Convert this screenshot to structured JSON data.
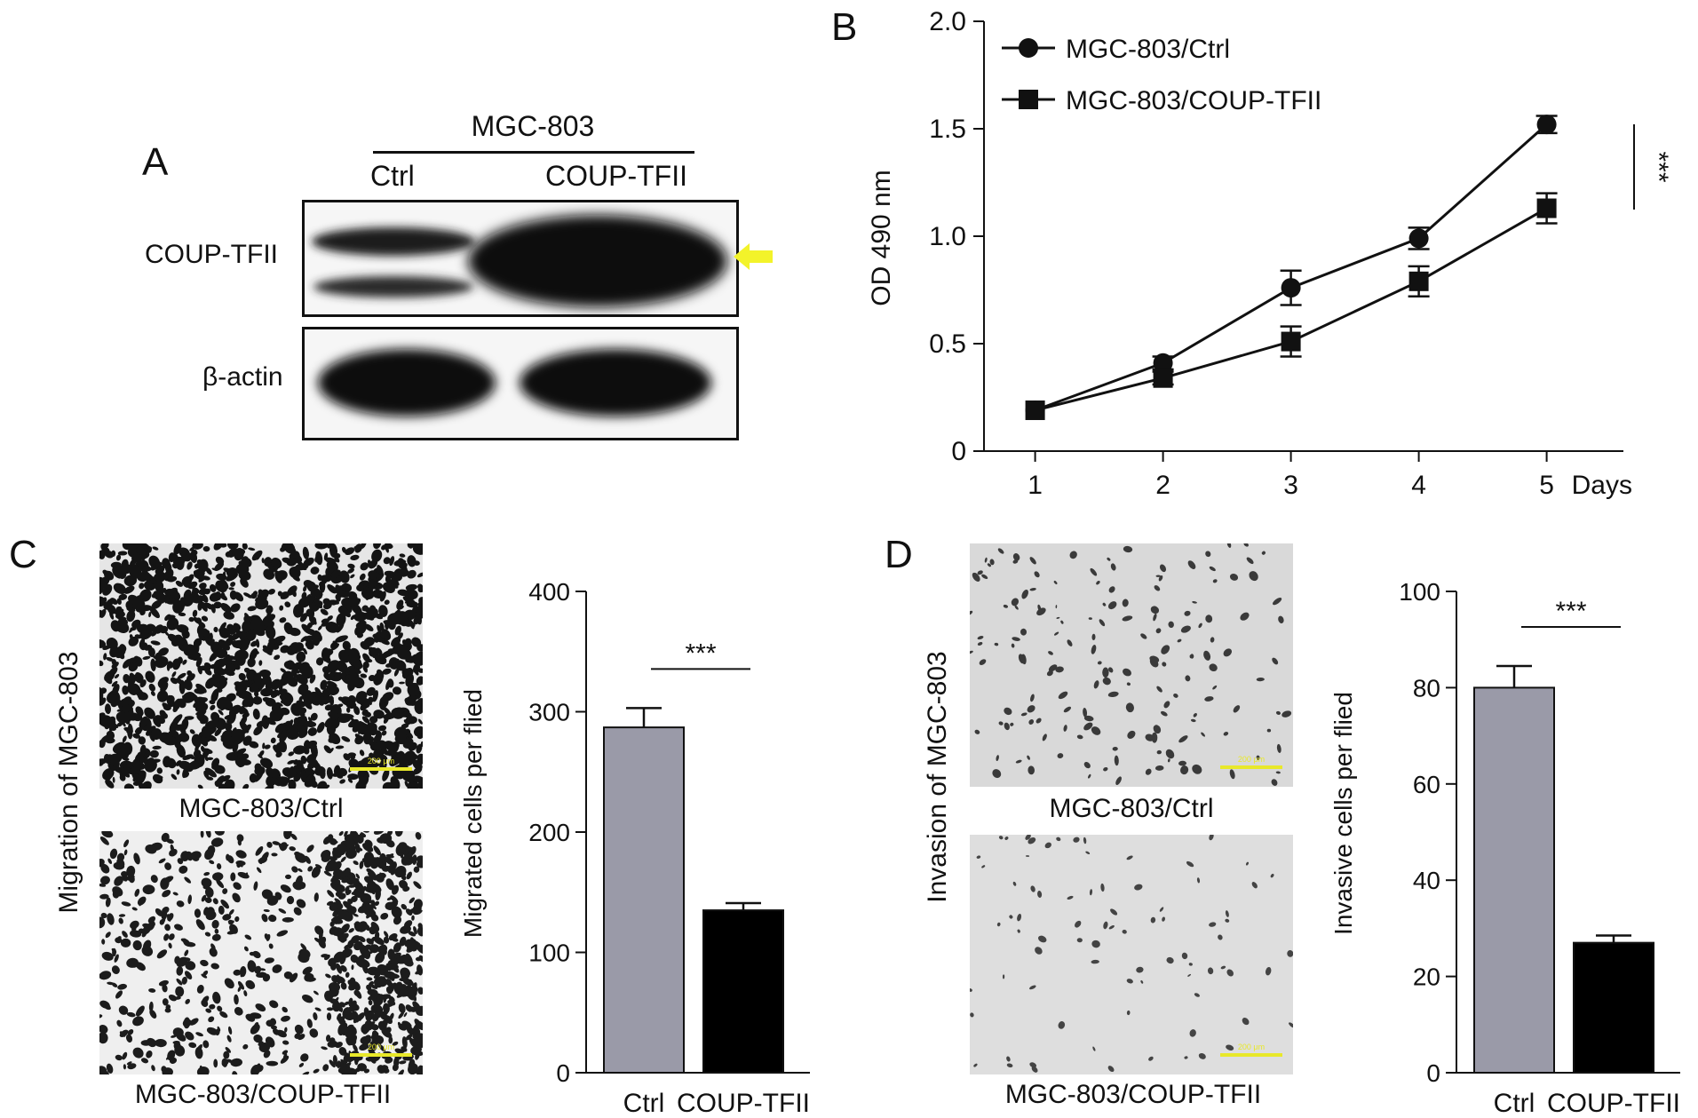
{
  "figure": {
    "panel_a": {
      "label": "A",
      "cell_line": "MGC-803",
      "lanes": [
        "Ctrl",
        "COUP-TFII"
      ],
      "rows": [
        "COUP-TFII",
        "β-actin"
      ],
      "arrow_color": "#f3f32a"
    },
    "panel_b": {
      "label": "B",
      "significance": "***"
    },
    "panel_c": {
      "label": "C",
      "side_label": "Migration of MGC-803",
      "image_captions": [
        "MGC-803/Ctrl",
        "MGC-803/COUP-TFII"
      ],
      "scale_bar_text": "200 μm",
      "significance": "***"
    },
    "panel_d": {
      "label": "D",
      "side_label": "Invasion of MGC-803",
      "image_captions": [
        "MGC-803/Ctrl",
        "MGC-803/COUP-TFII"
      ],
      "scale_bar_text": "200 μm",
      "significance": "***"
    }
  },
  "chart_data": [
    {
      "type": "line",
      "panel": "B",
      "x": [
        1,
        2,
        3,
        4,
        5
      ],
      "x_unit_label": "Days",
      "ylabel": "OD 490 nm",
      "ylim": [
        0,
        2.0
      ],
      "yticks": [
        "0",
        "0.5",
        "1.0",
        "1.5",
        "2.0"
      ],
      "xticks": [
        "1",
        "2",
        "3",
        "4",
        "5"
      ],
      "legend_position": "top-left",
      "series": [
        {
          "name": "MGC-803/Ctrl",
          "marker": "circle",
          "values": [
            0.19,
            0.41,
            0.76,
            0.99,
            1.52
          ],
          "errors": [
            0.02,
            0.03,
            0.08,
            0.05,
            0.04
          ]
        },
        {
          "name": "MGC-803/COUP-TFII",
          "marker": "square",
          "values": [
            0.19,
            0.34,
            0.51,
            0.79,
            1.13
          ],
          "errors": [
            0.02,
            0.03,
            0.07,
            0.07,
            0.07
          ]
        }
      ]
    },
    {
      "type": "bar",
      "panel": "C",
      "categories": [
        "Ctrl",
        "COUP-TFII"
      ],
      "values": [
        287,
        135
      ],
      "errors": [
        16,
        6
      ],
      "colors": [
        "#9a9aa8",
        "#000000"
      ],
      "ylabel": "Migrated cells per flied",
      "ylim": [
        0,
        400
      ],
      "yticks": [
        "0",
        "100",
        "200",
        "300",
        "400"
      ]
    },
    {
      "type": "bar",
      "panel": "D",
      "categories": [
        "Ctrl",
        "COUP-TFII"
      ],
      "values": [
        80,
        27
      ],
      "errors": [
        4.5,
        1.5
      ],
      "colors": [
        "#9a9aa8",
        "#000000"
      ],
      "ylabel": "Invasive cells per flied",
      "ylim": [
        0,
        100
      ],
      "yticks": [
        "0",
        "20",
        "40",
        "60",
        "80",
        "100"
      ]
    }
  ]
}
